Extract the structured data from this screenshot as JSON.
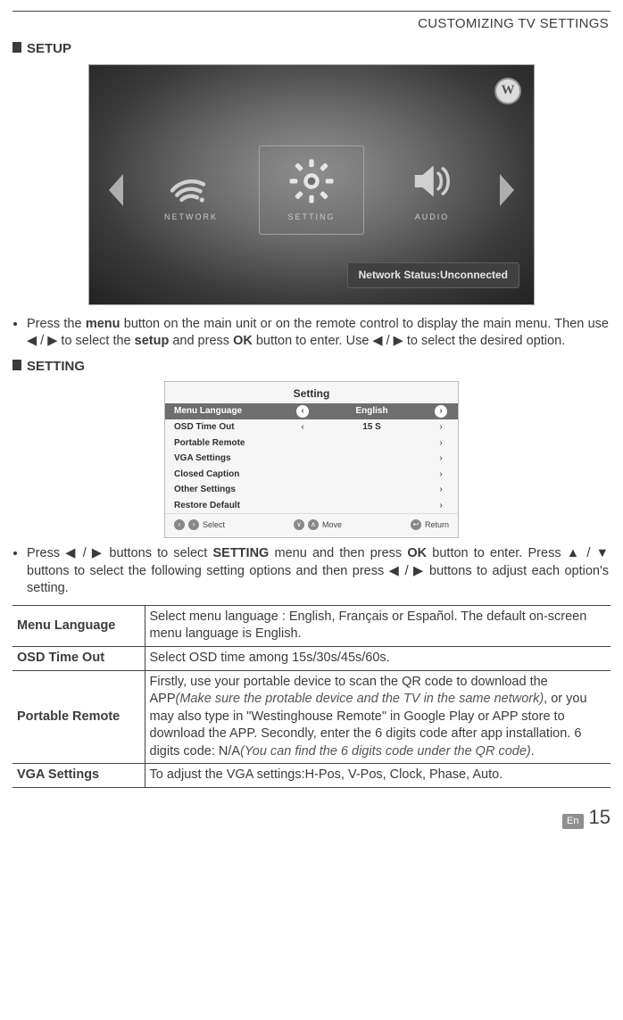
{
  "breadcrumb": "CUSTOMIZING TV SETTINGS",
  "sections": {
    "setup_title": "SETUP",
    "setting_title": "SETTING"
  },
  "hero": {
    "logo_text": "W",
    "tiles": {
      "left": {
        "label": "NETWORK",
        "icon": "network-icon"
      },
      "center": {
        "label": "SETTING",
        "icon": "gear-icon"
      },
      "right": {
        "label": "AUDIO",
        "icon": "speaker-icon"
      }
    },
    "status": "Network Status:Unconnected",
    "colors": {
      "panel_border": "#a2a2a2",
      "arrow": "#aeaeae",
      "status_bg": "#404040",
      "status_text": "#e6e6e6"
    }
  },
  "setup_instruction": {
    "pre": "Press the ",
    "menu": "menu",
    "mid1": " button on the main unit or on the remote control to display the main menu. Then use ◀ / ▶ to select the ",
    "setup": "setup",
    "mid2": " and press ",
    "ok": "OK",
    "mid3": " button to enter. Use ◀ / ▶ to select the desired option."
  },
  "settings_panel": {
    "title": "Setting",
    "rows": [
      {
        "label": "Menu Language",
        "value": "English",
        "active": true,
        "has_value": true
      },
      {
        "label": "OSD Time Out",
        "value": "15 S",
        "active": false,
        "has_value": true
      },
      {
        "label": "Portable Remote",
        "value": "",
        "active": false,
        "has_value": false
      },
      {
        "label": "VGA Settings",
        "value": "",
        "active": false,
        "has_value": false
      },
      {
        "label": "Closed Caption",
        "value": "",
        "active": false,
        "has_value": false
      },
      {
        "label": "Other Settings",
        "value": "",
        "active": false,
        "has_value": false
      },
      {
        "label": "Restore Default",
        "value": "",
        "active": false,
        "has_value": false
      }
    ],
    "footer": {
      "select": "Select",
      "move": "Move",
      "return": "Return"
    }
  },
  "setting_instruction": {
    "line1_a": "Press ◀ / ▶ buttons to select ",
    "setting_bold": "SETTING",
    "line1_b": " menu and then press ",
    "ok_bold": "OK",
    "line1_c": " button to enter. Press ▲ / ▼ buttons to select the following setting options and then press ◀ / ▶ buttons to adjust each option's setting."
  },
  "defs": [
    {
      "key": "Menu Language",
      "text": "Select menu language : English, Français or Español. The default on-screen menu language is English."
    },
    {
      "key": "OSD Time Out",
      "text": "Select OSD time among 15s/30s/45s/60s."
    },
    {
      "key": "Portable Remote",
      "pre": "Firstly, use your portable device to scan the QR code to download the APP",
      "ital1": "(Make sure the protable device and the TV in the same network)",
      "mid": ", or you may also type in \"Westinghouse Remote\" in Google Play or APP store to download the APP. Secondly, enter the 6 digits code after app installation. 6 digits code: N/A",
      "ital2": "(You can find the 6 digits code under the QR code)",
      "post": "."
    },
    {
      "key": "VGA Settings",
      "text": "To adjust the VGA settings:H-Pos, V-Pos, Clock, Phase, Auto."
    }
  ],
  "footer": {
    "lang": "En",
    "page": "15"
  }
}
